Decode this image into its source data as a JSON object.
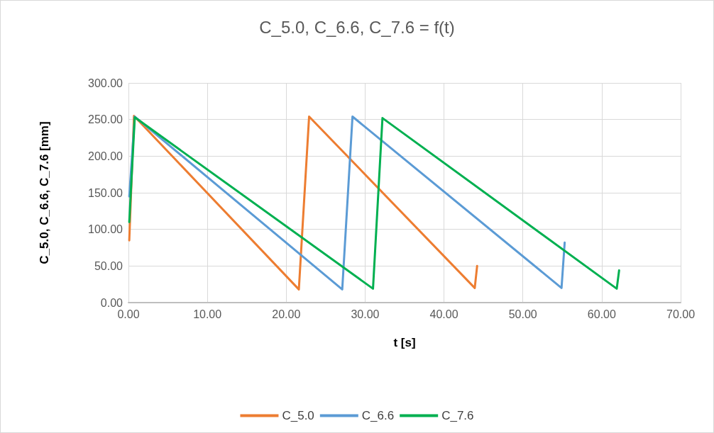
{
  "chart_data": {
    "type": "line",
    "title": "C_5.0, C_6.6, C_7.6 = f(t)",
    "xlabel": "t [s]",
    "ylabel": "C_5.0, C_6.6, C_7.6 [mm]",
    "xlim": [
      0,
      70
    ],
    "ylim": [
      0,
      300
    ],
    "xticks": [
      {
        "value": 0,
        "label": "0.00"
      },
      {
        "value": 10,
        "label": "10.00"
      },
      {
        "value": 20,
        "label": "20.00"
      },
      {
        "value": 30,
        "label": "30.00"
      },
      {
        "value": 40,
        "label": "40.00"
      },
      {
        "value": 50,
        "label": "50.00"
      },
      {
        "value": 60,
        "label": "60.00"
      },
      {
        "value": 70,
        "label": "70.00"
      }
    ],
    "yticks": [
      {
        "value": 0,
        "label": "0.00"
      },
      {
        "value": 50,
        "label": "50.00"
      },
      {
        "value": 100,
        "label": "100.00"
      },
      {
        "value": 150,
        "label": "150.00"
      },
      {
        "value": 200,
        "label": "200.00"
      },
      {
        "value": 250,
        "label": "250.00"
      },
      {
        "value": 300,
        "label": "300.00"
      }
    ],
    "grid": true,
    "legend": "bottom",
    "marker": "none",
    "line_style": "solid",
    "series": [
      {
        "name": "C_5.0",
        "color": "#ed7d31",
        "x": [
          0.1,
          0.7,
          21.6,
          22.9,
          43.9,
          44.2
        ],
        "values": [
          85,
          255,
          18,
          254,
          20,
          50
        ]
      },
      {
        "name": "C_6.6",
        "color": "#5b9bd5",
        "x": [
          0.1,
          0.8,
          27.1,
          28.4,
          54.9,
          55.3
        ],
        "values": [
          145,
          254,
          18,
          254,
          20,
          82
        ]
      },
      {
        "name": "C_7.6",
        "color": "#00b050",
        "x": [
          0.1,
          0.8,
          31.0,
          32.2,
          61.9,
          62.2
        ],
        "values": [
          110,
          253,
          19,
          252,
          19,
          44
        ]
      }
    ]
  }
}
